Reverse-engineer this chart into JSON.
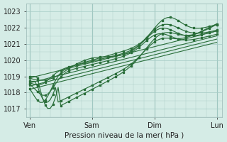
{
  "xlabel": "Pression niveau de la mer( hPa )",
  "bg_color": "#d5ece6",
  "grid_color": "#a8cdc7",
  "line_color": "#2a6e3a",
  "ylim": [
    1016.5,
    1023.5
  ],
  "yticks": [
    1017,
    1018,
    1019,
    1020,
    1021,
    1022,
    1023
  ],
  "xtick_labels": [
    "Ven",
    "Sam",
    "Dim",
    "Lun"
  ],
  "xtick_positions": [
    0,
    1,
    2,
    3
  ],
  "straight_lines": [
    [
      1018.9,
      1021.8
    ],
    [
      1018.6,
      1021.5
    ],
    [
      1018.4,
      1021.3
    ],
    [
      1018.2,
      1021.1
    ]
  ]
}
